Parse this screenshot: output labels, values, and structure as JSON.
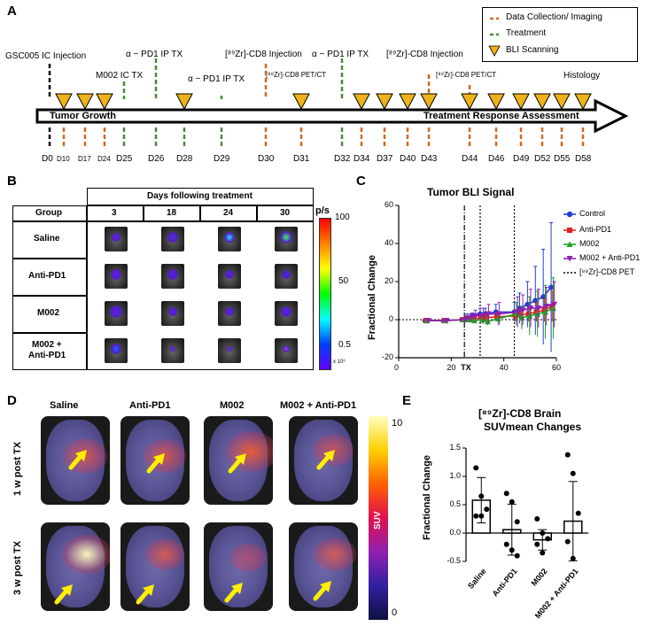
{
  "panels": {
    "a": "A",
    "b": "B",
    "c": "C",
    "d": "D",
    "e": "E"
  },
  "panel_a": {
    "legend": {
      "data_collection": "Data Collection/ Imaging",
      "treatment": "Treatment",
      "bli": "BLI Scanning"
    },
    "events": {
      "gsc": "GSC005 IC Injection",
      "m002": "M002 IC TX",
      "pd1_a": "α − PD1 IP TX",
      "pd1_b": "α − PD1 IP TX",
      "zr_inj_1": "[⁸⁹Zr]-CD8 Injection",
      "pd1_c": "α − PD1 IP TX",
      "zr_pet_1": "[⁸⁹Zr]-CD8 PET/CT",
      "zr_inj_2": "[⁸⁹Zr]-CD8 Injection",
      "zr_pet_2": "[⁸⁹Zr]-CD8 PET/CT",
      "histology": "Histology"
    },
    "arrow_left": "Tumor Growth",
    "arrow_right": "Treatment Response Assessment",
    "days": [
      "D0",
      "D10",
      "D17",
      "D24",
      "D25",
      "D26",
      "D28",
      "D29",
      "D30",
      "D31",
      "D32",
      "D34",
      "D37",
      "D40",
      "D43",
      "D44",
      "D46",
      "D49",
      "D52",
      "D55",
      "D58"
    ],
    "colors": {
      "collection": "#d2691e",
      "treatment": "#4a8a3a",
      "bli": "#f0b21a",
      "black": "#000000"
    }
  },
  "panel_b": {
    "header": "Days following treatment",
    "group_header": "Group",
    "columns": [
      "3",
      "18",
      "24",
      "30"
    ],
    "groups": [
      "Saline",
      "Anti-PD1",
      "M002",
      "M002 +",
      "Anti-PD1"
    ],
    "colorbar": {
      "unit": "p/s",
      "ticks": [
        "100",
        "50",
        "0.5"
      ],
      "scale": "x 10⁶"
    }
  },
  "panel_c": {
    "chart_data": {
      "type": "line",
      "title": "Tumor BLI Signal",
      "ylabel": "Fractional Change",
      "xlabel": "",
      "xlim": [
        0,
        60
      ],
      "ylim": [
        -20,
        60
      ],
      "xticks": [
        "0",
        "20",
        "40",
        "60"
      ],
      "yticks": [
        "-20",
        "0",
        "20",
        "40",
        "60"
      ],
      "x_annotation": "TX",
      "vlines": [
        {
          "x": 25,
          "style": "dashdot"
        },
        {
          "x": 31,
          "style": "dotted"
        },
        {
          "x": 44,
          "style": "dotted"
        }
      ],
      "series": [
        {
          "name": "Control",
          "color": "#1f3fd6",
          "marker": "circle",
          "x": [
            10,
            17,
            24,
            26,
            28,
            31,
            33,
            37,
            44,
            46,
            49,
            52,
            55,
            58
          ],
          "y": [
            -0.5,
            -0.5,
            0,
            1,
            1.5,
            3,
            3,
            4,
            4,
            6,
            8,
            10,
            12,
            17
          ],
          "err": [
            1,
            1,
            1,
            2,
            2,
            3,
            3,
            4,
            5,
            8,
            12,
            18,
            25,
            34
          ]
        },
        {
          "name": "Anti-PD1",
          "color": "#e02020",
          "marker": "square",
          "x": [
            10,
            17,
            24,
            26,
            28,
            31,
            33,
            37,
            44,
            46,
            49,
            52,
            55,
            58
          ],
          "y": [
            -0.5,
            -0.5,
            0,
            0.5,
            0.5,
            1,
            1,
            1.5,
            2,
            2.5,
            3,
            4,
            5,
            7
          ],
          "err": [
            1,
            1,
            1,
            1,
            1,
            2,
            2,
            2,
            3,
            3,
            4,
            5,
            6,
            8
          ]
        },
        {
          "name": "M002",
          "color": "#20a020",
          "marker": "triangle",
          "x": [
            10,
            17,
            24,
            26,
            28,
            31,
            33,
            37,
            44,
            46,
            49,
            52,
            55,
            58
          ],
          "y": [
            -0.5,
            -0.5,
            0,
            0,
            -0.5,
            0,
            -1,
            0.5,
            3,
            1,
            2,
            3,
            4,
            6
          ],
          "err": [
            1,
            1,
            1,
            1,
            1,
            2,
            2,
            3,
            6,
            6,
            10,
            12,
            14,
            16
          ]
        },
        {
          "name": "M002 + Anti-PD1",
          "color": "#9020b0",
          "marker": "triangle-down",
          "x": [
            10,
            17,
            24,
            26,
            28,
            31,
            33,
            37,
            44,
            46,
            49,
            52,
            55,
            58
          ],
          "y": [
            -0.5,
            -0.5,
            0,
            1,
            2,
            2,
            3,
            3,
            4,
            5,
            6,
            6,
            7,
            8
          ],
          "err": [
            1,
            1,
            1,
            2,
            3,
            4,
            5,
            6,
            8,
            8,
            10,
            10,
            10,
            12
          ]
        }
      ],
      "legend_extra": "[⁸⁹Zr]-CD8 PET",
      "legend_position": "top-right"
    }
  },
  "panel_d": {
    "columns": [
      "Saline",
      "Anti-PD1",
      "M002",
      "M002 + Anti-PD1"
    ],
    "rows": [
      "1 w post TX",
      "3 w post TX"
    ],
    "colorbar": {
      "label": "SUV",
      "ticks": [
        "10",
        "0"
      ]
    }
  },
  "panel_e": {
    "chart_data": {
      "type": "bar",
      "title_line1": "[⁸⁹Zr]-CD8 Brain",
      "title_line2": "SUVmean Changes",
      "ylabel": "Fractional Change",
      "categories": [
        "Saline",
        "Anti-PD1",
        "M002",
        "M002 + Anti-PD1"
      ],
      "values": [
        0.58,
        0.06,
        -0.12,
        0.21
      ],
      "err": [
        0.4,
        0.45,
        0.18,
        0.7
      ],
      "points": [
        [
          1.15,
          0.65,
          0.42,
          0.3,
          0.3
        ],
        [
          0.7,
          0.55,
          0.2,
          -0.2,
          -0.3,
          -0.4
        ],
        [
          0.25,
          0,
          -0.1,
          -0.2,
          -0.35
        ],
        [
          1.38,
          1.05,
          0.35,
          -0.15,
          -0.45
        ]
      ],
      "ylim": [
        -0.5,
        1.5
      ],
      "yticks": [
        "-0.5",
        "0.0",
        "0.5",
        "1.0",
        "1.5"
      ]
    }
  }
}
